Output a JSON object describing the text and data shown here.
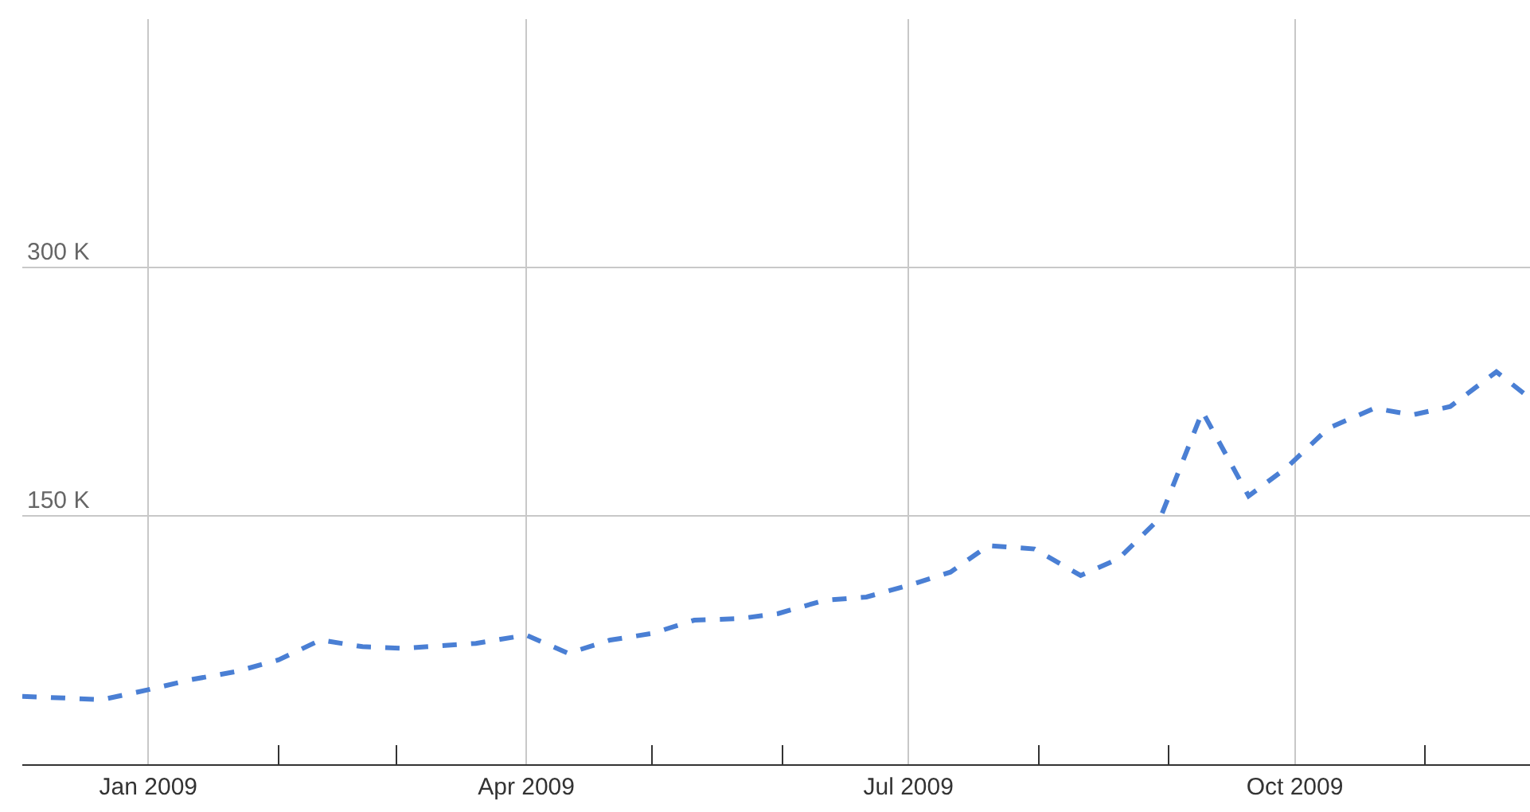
{
  "chart_data": {
    "type": "line",
    "x": [
      "2008-12-02",
      "2008-12-12",
      "2008-12-21",
      "2009-01-01",
      "2009-01-11",
      "2009-01-22",
      "2009-02-01",
      "2009-02-11",
      "2009-02-21",
      "2009-03-03",
      "2009-03-20",
      "2009-04-01",
      "2009-04-11",
      "2009-04-21",
      "2009-05-01",
      "2009-05-11",
      "2009-05-22",
      "2009-05-31",
      "2009-06-11",
      "2009-06-21",
      "2009-07-01",
      "2009-07-11",
      "2009-07-20",
      "2009-07-31",
      "2009-08-11",
      "2009-08-20",
      "2009-08-30",
      "2009-09-09",
      "2009-09-20",
      "2009-09-29",
      "2009-10-09",
      "2009-10-20",
      "2009-10-29",
      "2009-11-07",
      "2009-11-18",
      "2009-11-26"
    ],
    "series": [
      {
        "color": "#4a7fd4",
        "line_style": "dashed",
        "values": [
          41,
          40,
          39,
          45,
          51,
          56,
          63,
          75,
          71,
          70,
          73,
          78,
          67,
          75,
          79,
          87,
          88,
          91,
          99,
          101,
          108,
          116,
          132,
          130,
          114,
          124,
          149,
          213,
          162,
          179,
          203,
          215,
          211,
          216,
          237,
          221
        ]
      }
    ],
    "xlim": [
      "2008-12-02",
      "2009-11-26"
    ],
    "xticks": [
      {
        "value": "2009-01-01",
        "label": "Jan 2009"
      },
      {
        "value": "2009-02-01",
        "label": null
      },
      {
        "value": "2009-03-01",
        "label": null
      },
      {
        "value": "2009-04-01",
        "label": "Apr 2009"
      },
      {
        "value": "2009-05-01",
        "label": null
      },
      {
        "value": "2009-06-01",
        "label": null
      },
      {
        "value": "2009-07-01",
        "label": "Jul 2009"
      },
      {
        "value": "2009-08-01",
        "label": null
      },
      {
        "value": "2009-09-01",
        "label": null
      },
      {
        "value": "2009-10-01",
        "label": "Oct 2009"
      },
      {
        "value": "2009-11-01",
        "label": null
      }
    ],
    "ylim": [
      0,
      450
    ],
    "yticks": [
      {
        "value": 150,
        "label": "150 K"
      },
      {
        "value": 300,
        "label": "300 K"
      }
    ],
    "grid": true,
    "legend": false,
    "marker": "none"
  }
}
